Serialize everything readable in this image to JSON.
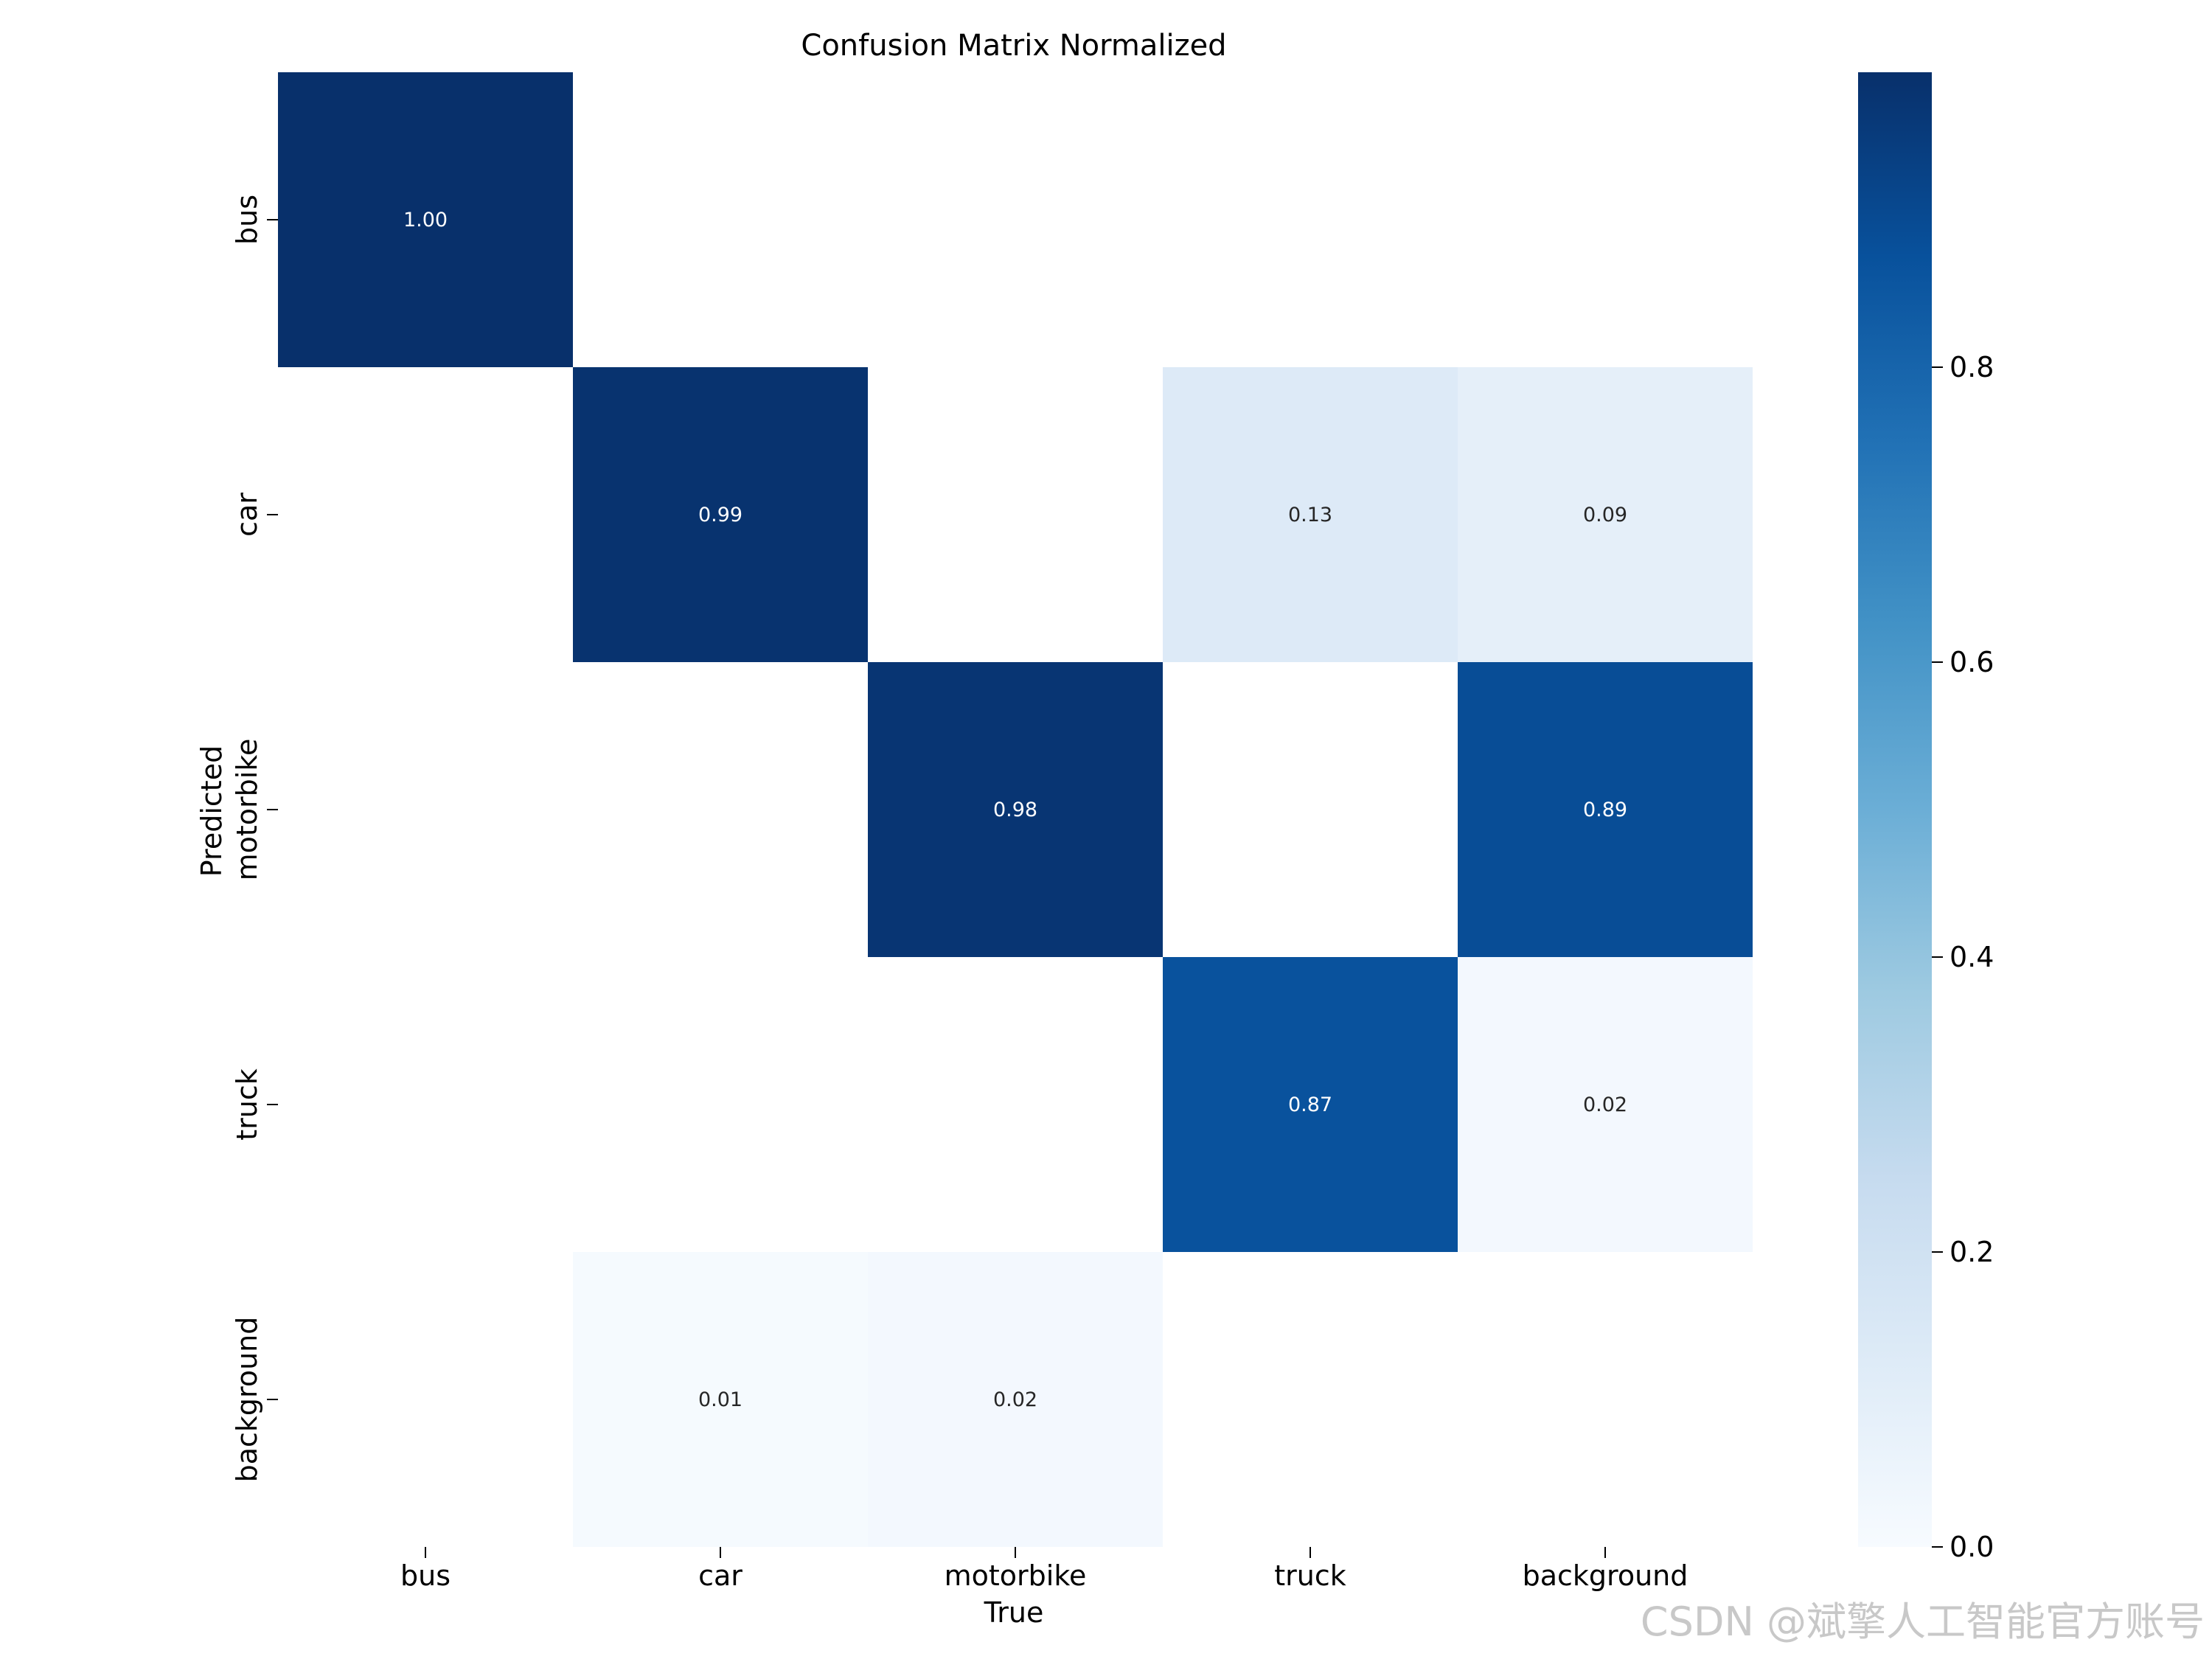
{
  "chart_data": {
    "type": "heatmap",
    "title": "Confusion Matrix Normalized",
    "xlabel": "True",
    "ylabel": "Predicted",
    "x_categories": [
      "bus",
      "car",
      "motorbike",
      "truck",
      "background"
    ],
    "y_categories": [
      "bus",
      "car",
      "motorbike",
      "truck",
      "background"
    ],
    "matrix": [
      [
        1.0,
        null,
        null,
        null,
        null
      ],
      [
        null,
        0.99,
        null,
        0.13,
        0.09
      ],
      [
        null,
        null,
        0.98,
        null,
        0.89
      ],
      [
        null,
        null,
        null,
        0.87,
        0.02
      ],
      [
        null,
        0.01,
        0.02,
        null,
        null
      ]
    ],
    "colormap": "Blues",
    "colorbar": {
      "range": [
        0,
        1.0
      ],
      "ticks": [
        0.0,
        0.2,
        0.4,
        0.6,
        0.8
      ],
      "tick_labels": [
        "0.0",
        "0.2",
        "0.4",
        "0.6",
        "0.8"
      ]
    },
    "grid": false
  },
  "watermark": "CSDN @斌擎人工智能官方账号"
}
